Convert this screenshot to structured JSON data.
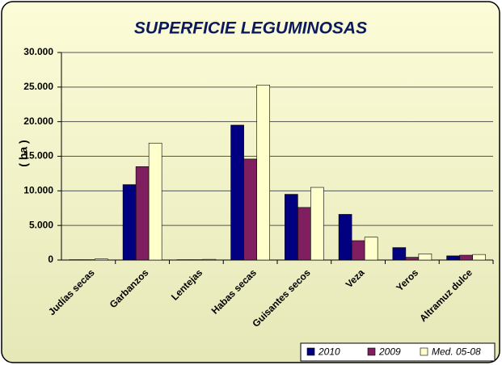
{
  "chart_data": {
    "type": "bar",
    "title": "SUPERFICIE LEGUMINOSAS",
    "y_label": "( ha )",
    "categories": [
      "Judías secas",
      "Garbanzos",
      "Lentejas",
      "Habas secas",
      "Guisantes secos",
      "Veza",
      "Yeros",
      "Altramuz dulce"
    ],
    "series": [
      {
        "name": "2010",
        "color": "#000080",
        "values": [
          50,
          10900,
          50,
          19500,
          9500,
          6600,
          1800,
          600
        ]
      },
      {
        "name": "2009",
        "color": "#7f1f5f",
        "values": [
          50,
          13500,
          50,
          14600,
          7600,
          2800,
          400,
          700
        ]
      },
      {
        "name": "Med. 05-08",
        "color": "#ffffcc",
        "values": [
          150,
          16900,
          100,
          25300,
          10500,
          3300,
          900,
          800
        ]
      }
    ],
    "ylim": [
      0,
      30000
    ],
    "yticks": [
      0,
      {
        "value": 5000,
        "label": "5.000"
      },
      {
        "value": 10000,
        "label": "10.000"
      },
      {
        "value": 15000,
        "label": "15.000"
      },
      {
        "value": 20000,
        "label": "20.000"
      },
      {
        "value": 25000,
        "label": "25.000"
      },
      {
        "value": 30000,
        "label": "30.000"
      }
    ],
    "grid": true,
    "legend": "bottom-right"
  }
}
